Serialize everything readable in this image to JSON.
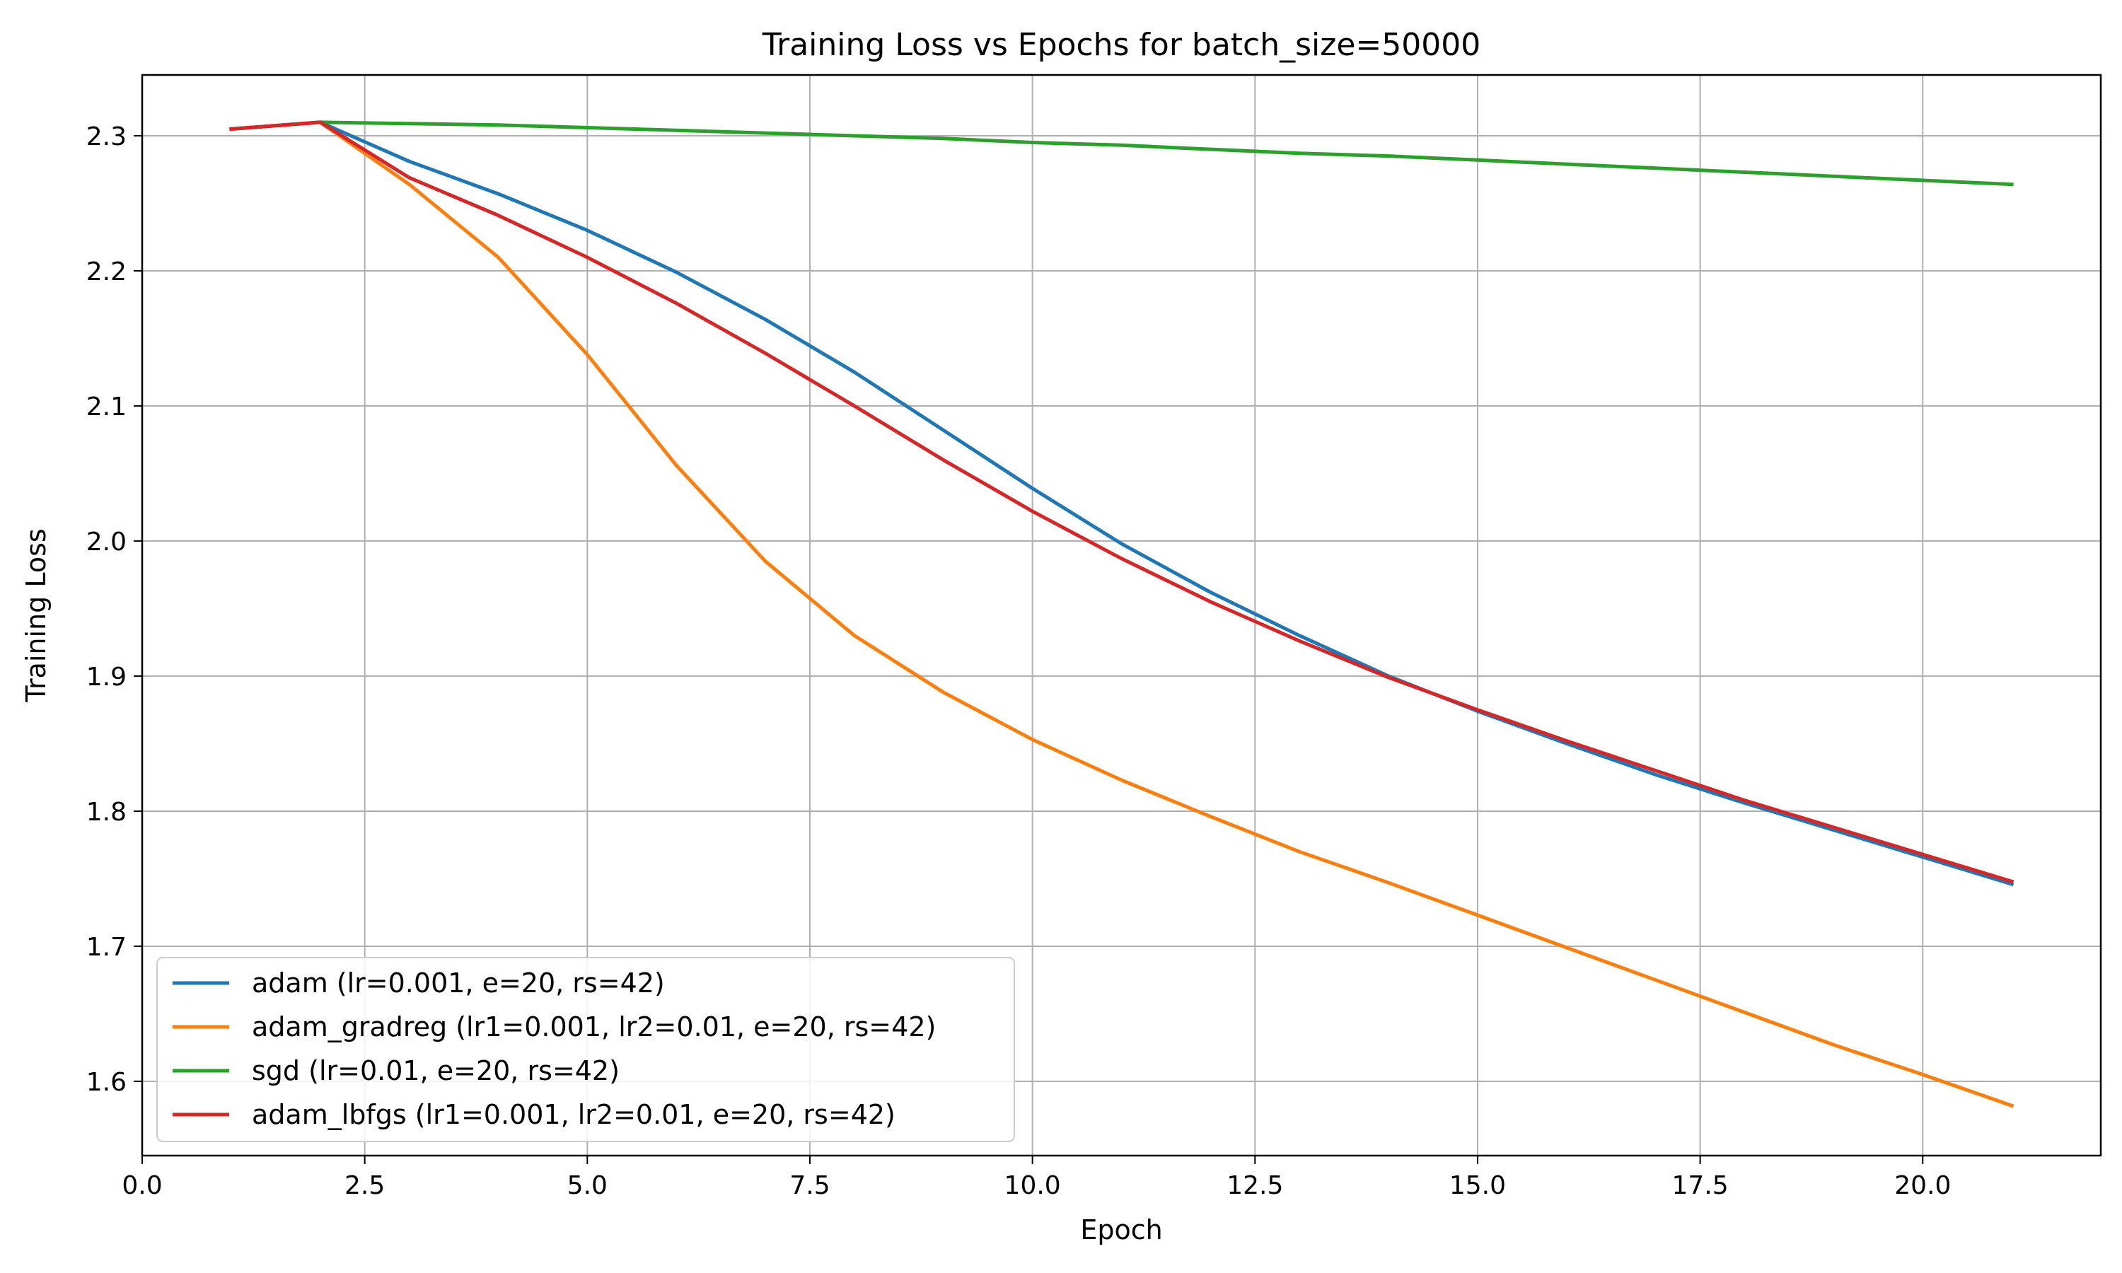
{
  "chart_data": {
    "type": "line",
    "title": "Training Loss vs Epochs for batch_size=50000",
    "xlabel": "Epoch",
    "ylabel": "Training Loss",
    "xlim": [
      0.0,
      22.0
    ],
    "ylim": [
      1.545,
      2.345
    ],
    "x_ticks": [
      "0.0",
      "2.5",
      "5.0",
      "7.5",
      "10.0",
      "12.5",
      "15.0",
      "17.5",
      "20.0"
    ],
    "y_ticks": [
      "1.6",
      "1.7",
      "1.8",
      "1.9",
      "2.0",
      "2.1",
      "2.2",
      "2.3"
    ],
    "grid": true,
    "legend_position": "lower-left",
    "x": [
      1,
      2,
      3,
      4,
      5,
      6,
      7,
      8,
      9,
      10,
      11,
      12,
      13,
      14,
      15,
      16,
      17,
      18,
      19,
      20,
      21
    ],
    "series": [
      {
        "name": "adam (lr=0.001, e=20, rs=42)",
        "color": "#1f77b4",
        "values": [
          2.305,
          2.31,
          2.281,
          2.257,
          2.23,
          2.199,
          2.164,
          2.125,
          2.082,
          2.039,
          1.998,
          1.962,
          1.93,
          1.9,
          1.874,
          1.85,
          1.827,
          1.806,
          1.786,
          1.766,
          1.746
        ]
      },
      {
        "name": "adam_gradreg (lr1=0.001, lr2=0.01, e=20, rs=42)",
        "color": "#ff7f0e",
        "values": [
          2.305,
          2.31,
          2.264,
          2.21,
          2.138,
          2.056,
          1.985,
          1.93,
          1.888,
          1.853,
          1.823,
          1.796,
          1.77,
          1.747,
          1.723,
          1.699,
          1.675,
          1.651,
          1.627,
          1.605,
          1.582
        ]
      },
      {
        "name": "sgd (lr=0.01, e=20, rs=42)",
        "color": "#2ca02c",
        "values": [
          2.305,
          2.31,
          2.309,
          2.308,
          2.306,
          2.304,
          2.302,
          2.3,
          2.298,
          2.295,
          2.293,
          2.29,
          2.287,
          2.285,
          2.282,
          2.279,
          2.276,
          2.273,
          2.27,
          2.267,
          2.264
        ]
      },
      {
        "name": "adam_lbfgs (lr1=0.001, lr2=0.01, e=20, rs=42)",
        "color": "#d62728",
        "values": [
          2.305,
          2.31,
          2.269,
          2.241,
          2.21,
          2.176,
          2.139,
          2.1,
          2.06,
          2.022,
          1.987,
          1.955,
          1.926,
          1.899,
          1.875,
          1.852,
          1.83,
          1.808,
          1.788,
          1.768,
          1.748
        ]
      }
    ]
  }
}
